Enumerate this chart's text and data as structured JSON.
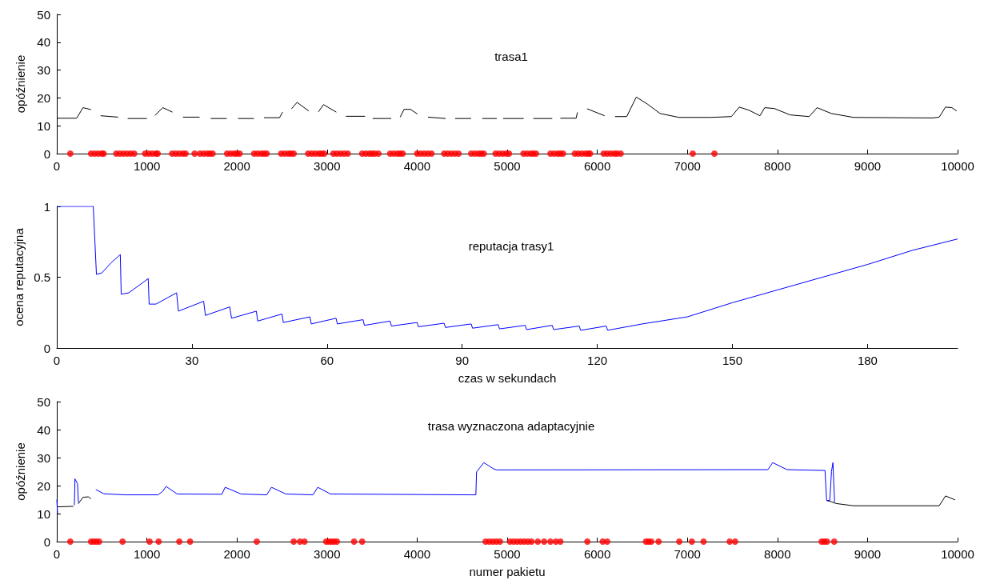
{
  "chart_data": [
    {
      "type": "line",
      "title": "trasa1",
      "ylabel": "opóźnienie",
      "xlim": [
        0,
        10000
      ],
      "xticks": [
        0,
        1000,
        2000,
        3000,
        4000,
        5000,
        6000,
        7000,
        8000,
        9000,
        10000
      ],
      "ylim": [
        0,
        50
      ],
      "yticks": [
        0,
        10,
        20,
        30,
        40,
        50
      ],
      "grid": false,
      "series": [
        {
          "type": "line",
          "color": "#000000",
          "marker": "none",
          "x": [
            0,
            220,
            291,
            380,
            400,
            486,
            681,
            700,
            787,
            1000,
            1050,
            1089,
            1177,
            1284,
            1300,
            1401,
            1585,
            1600,
            1709,
            1887,
            1900,
            2011,
            2188,
            2200,
            2301,
            2472,
            2507,
            2550,
            2606,
            2667,
            2798,
            2850,
            2904,
            2961,
            3103,
            3150,
            3209,
            3422,
            3450,
            3507,
            3713,
            3750,
            3812,
            3855,
            3926,
            4004,
            4050,
            4121,
            4316,
            4350,
            4422,
            4599,
            4650,
            4723,
            4884,
            4920,
            4955,
            5183,
            5250,
            5290,
            5500,
            5550,
            5590,
            5765,
            5780,
            5830,
            5887,
            6081,
            6150,
            6197,
            6327,
            6433,
            6556,
            6697,
            6908,
            7261,
            7489,
            7577,
            7683,
            7806,
            7859,
            7965,
            8141,
            8352,
            8440,
            8599,
            8845,
            9725,
            9796,
            9866,
            9937,
            9990
          ],
          "values": [
            12.7,
            12.7,
            16.5,
            15.8,
            null,
            13.6,
            13.1,
            null,
            12.6,
            12.6,
            null,
            13.7,
            16.5,
            14.9,
            null,
            13.1,
            13.1,
            null,
            12.6,
            12.6,
            null,
            12.6,
            12.6,
            null,
            12.9,
            12.9,
            14.9,
            null,
            16.1,
            18.4,
            15.3,
            null,
            15.0,
            17.6,
            14.9,
            null,
            13.4,
            13.4,
            null,
            12.6,
            12.6,
            null,
            13.1,
            15.9,
            15.9,
            14.2,
            null,
            13.1,
            12.6,
            null,
            12.6,
            12.6,
            null,
            12.6,
            12.6,
            null,
            12.6,
            12.6,
            null,
            12.6,
            12.6,
            null,
            12.7,
            12.7,
            14.8,
            null,
            16.1,
            13.6,
            null,
            13.3,
            13.3,
            20.3,
            17.8,
            14.4,
            13.0,
            13.0,
            13.3,
            16.7,
            15.6,
            13.6,
            16.5,
            16.2,
            13.9,
            13.3,
            16.5,
            14.4,
            13.0,
            12.8,
            13.1,
            16.7,
            16.5,
            15.3
          ]
        },
        {
          "type": "scatter",
          "color": "#ff0000",
          "marker": "circle",
          "x": [
            150,
            380,
            420,
            460,
            500,
            520,
            660,
            700,
            740,
            780,
            820,
            860,
            980,
            1020,
            1060,
            1100,
            1120,
            1280,
            1320,
            1360,
            1400,
            1430,
            1530,
            1590,
            1630,
            1670,
            1700,
            1730,
            1890,
            1930,
            1970,
            2000,
            2030,
            2190,
            2230,
            2270,
            2300,
            2330,
            2490,
            2530,
            2570,
            2600,
            2630,
            2790,
            2830,
            2870,
            2910,
            2940,
            2970,
            3070,
            3110,
            3150,
            3190,
            3230,
            3390,
            3430,
            3470,
            3500,
            3530,
            3570,
            3700,
            3740,
            3780,
            3810,
            3840,
            4000,
            4040,
            4080,
            4120,
            4160,
            4300,
            4340,
            4380,
            4420,
            4460,
            4600,
            4640,
            4680,
            4710,
            4740,
            4870,
            4910,
            4950,
            4990,
            5020,
            5180,
            5220,
            5260,
            5290,
            5320,
            5480,
            5520,
            5560,
            5590,
            5620,
            5750,
            5790,
            5830,
            5870,
            5900,
            5920,
            6070,
            6110,
            6150,
            6190,
            6220,
            6260,
            7060,
            7300
          ],
          "values": [
            0,
            0,
            0,
            0,
            0,
            0,
            0,
            0,
            0,
            0,
            0,
            0,
            0,
            0,
            0,
            0,
            0,
            0,
            0,
            0,
            0,
            0,
            0,
            0,
            0,
            0,
            0,
            0,
            0,
            0,
            0,
            0,
            0,
            0,
            0,
            0,
            0,
            0,
            0,
            0,
            0,
            0,
            0,
            0,
            0,
            0,
            0,
            0,
            0,
            0,
            0,
            0,
            0,
            0,
            0,
            0,
            0,
            0,
            0,
            0,
            0,
            0,
            0,
            0,
            0,
            0,
            0,
            0,
            0,
            0,
            0,
            0,
            0,
            0,
            0,
            0,
            0,
            0,
            0,
            0,
            0,
            0,
            0,
            0,
            0,
            0,
            0,
            0,
            0,
            0,
            0,
            0,
            0,
            0,
            0,
            0,
            0,
            0,
            0,
            0,
            0,
            0,
            0,
            0,
            0,
            0,
            0,
            0,
            0
          ]
        }
      ]
    },
    {
      "type": "line",
      "title": "reputacja trasy1",
      "xlabel": "czas w sekundach",
      "ylabel": "ocena reputacyjna",
      "xlim": [
        0,
        200
      ],
      "xticks": [
        0,
        30,
        60,
        90,
        120,
        150,
        180
      ],
      "ylim": [
        0,
        1
      ],
      "yticks": [
        0,
        0.5,
        1
      ],
      "grid": false,
      "series": [
        {
          "type": "line",
          "color": "#0000ff",
          "marker": "none",
          "x": [
            0,
            8.1,
            8.8,
            10,
            12,
            14.1,
            14.3,
            16,
            20.3,
            20.5,
            22,
            26.6,
            27,
            32.6,
            33,
            38.4,
            38.8,
            44.3,
            44.6,
            50,
            50.3,
            56.2,
            56.5,
            62,
            62.3,
            68,
            68.3,
            74,
            74.3,
            80,
            80.3,
            86,
            86.3,
            92,
            92.3,
            98,
            98.3,
            104,
            104.3,
            110,
            110.3,
            116,
            116.3,
            122,
            122.3,
            130,
            140,
            150,
            160,
            170,
            180,
            190,
            200
          ],
          "values": [
            1,
            1,
            0.52,
            0.53,
            0.6,
            0.66,
            0.38,
            0.39,
            0.49,
            0.31,
            0.31,
            0.39,
            0.26,
            0.33,
            0.23,
            0.29,
            0.21,
            0.26,
            0.19,
            0.24,
            0.18,
            0.22,
            0.17,
            0.21,
            0.17,
            0.2,
            0.16,
            0.19,
            0.155,
            0.18,
            0.15,
            0.175,
            0.145,
            0.17,
            0.14,
            0.165,
            0.135,
            0.16,
            0.13,
            0.16,
            0.13,
            0.155,
            0.125,
            0.155,
            0.125,
            0.17,
            0.22,
            0.32,
            0.41,
            0.5,
            0.59,
            0.69,
            0.77
          ]
        }
      ]
    },
    {
      "type": "line",
      "title": "trasa wyznaczona adaptacyjnie",
      "xlabel": "numer pakietu",
      "ylabel": "opóźnienie",
      "xlim": [
        0,
        10000
      ],
      "xticks": [
        0,
        1000,
        2000,
        3000,
        4000,
        5000,
        6000,
        7000,
        8000,
        9000,
        10000
      ],
      "ylim": [
        0,
        50
      ],
      "yticks": [
        0,
        10,
        20,
        30,
        40,
        50
      ],
      "grid": false,
      "series": [
        {
          "type": "line",
          "color": "#000000",
          "marker": "none",
          "x": [
            0,
            184,
            200,
            238,
            290,
            350,
            379,
            400,
            8550,
            8585,
            8651,
            8845,
            9796,
            9866,
            9972
          ],
          "values": [
            12.4,
            12.6,
            null,
            13.5,
            15.8,
            16.0,
            15.3,
            null,
            14.6,
            14.4,
            13.6,
            12.8,
            12.8,
            16.3,
            14.9
          ]
        },
        {
          "type": "line",
          "color": "#0000ff",
          "marker": "none",
          "x": [
            0,
            8,
            20,
            195,
            202,
            230,
            240,
            260,
            433,
            521,
            628,
            770,
            1124,
            1177,
            1213,
            1337,
            1833,
            1869,
            2046,
            2330,
            2383,
            2543,
            2844,
            2897,
            3039,
            4599,
            4652,
            4660,
            4741,
            4848,
            4883,
            7894,
            7947,
            8106,
            8528,
            8546,
            8581,
            8600,
            8616,
            8634
          ],
          "values": [
            15,
            10,
            null,
            13,
            22.4,
            20.7,
            14,
            null,
            18.6,
            17.1,
            16.9,
            16.7,
            16.7,
            18.0,
            19.7,
            17.0,
            16.9,
            19.4,
            17.0,
            16.7,
            19.4,
            17.0,
            16.7,
            19.4,
            17.0,
            16.7,
            16.7,
            24.9,
            28.2,
            26.0,
            25.6,
            25.7,
            28.2,
            25.7,
            25.4,
            14.7,
            14.7,
            25.0,
            28.2,
            14.1
          ]
        },
        {
          "type": "scatter",
          "color": "#ff0000",
          "marker": "circle",
          "x": [
            150,
            380,
            410,
            440,
            470,
            730,
            1030,
            1130,
            1360,
            1480,
            2220,
            2630,
            2700,
            2750,
            2990,
            3020,
            3050,
            3080,
            3110,
            3300,
            3390,
            4760,
            4800,
            4840,
            4880,
            4920,
            5030,
            5070,
            5110,
            5150,
            5190,
            5230,
            5270,
            5340,
            5410,
            5480,
            5540,
            5590,
            5890,
            6060,
            6110,
            6540,
            6570,
            6600,
            6680,
            6910,
            7050,
            7180,
            7470,
            7530,
            8490,
            8520,
            8550,
            8630
          ],
          "values": [
            0,
            0,
            0,
            0,
            0,
            0,
            0,
            0,
            0,
            0,
            0,
            0,
            0,
            0,
            0,
            0,
            0,
            0,
            0,
            0,
            0,
            0,
            0,
            0,
            0,
            0,
            0,
            0,
            0,
            0,
            0,
            0,
            0,
            0,
            0,
            0,
            0,
            0,
            0,
            0,
            0,
            0,
            0,
            0,
            0,
            0,
            0,
            0,
            0,
            0,
            0,
            0,
            0,
            0
          ]
        }
      ]
    }
  ]
}
